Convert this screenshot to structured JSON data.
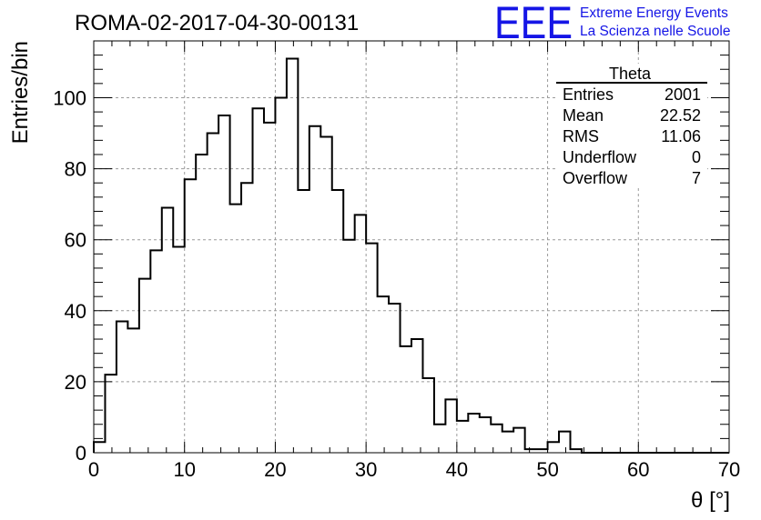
{
  "chart_data": {
    "type": "bar",
    "title": "ROMA-02-2017-04-30-00131",
    "xlabel": "θ [°]",
    "ylabel": "Entries/bin",
    "xlim": [
      0,
      70
    ],
    "ylim": [
      0,
      116
    ],
    "bin_width": 1.25,
    "bin_start": 0,
    "values": [
      3,
      22,
      37,
      35,
      49,
      57,
      69,
      58,
      77,
      84,
      90,
      95,
      70,
      76,
      97,
      93,
      100,
      111,
      74,
      92,
      89,
      74,
      60,
      67,
      59,
      44,
      42,
      30,
      32,
      21,
      8,
      15,
      9,
      11,
      10,
      8,
      6,
      7,
      1,
      1,
      3,
      6,
      1,
      0,
      0,
      0,
      0,
      0,
      0,
      0,
      0,
      0,
      0,
      0,
      0,
      0
    ],
    "x_ticks": [
      "0",
      "10",
      "20",
      "30",
      "40",
      "50",
      "60",
      "70"
    ],
    "y_ticks": [
      "0",
      "20",
      "40",
      "60",
      "80",
      "100"
    ],
    "grid": true
  },
  "stats_box": {
    "title": "Theta",
    "rows": [
      {
        "label": "Entries",
        "value": "2001"
      },
      {
        "label": "Mean",
        "value": "22.52"
      },
      {
        "label": "RMS",
        "value": "11.06"
      },
      {
        "label": "Underflow",
        "value": "0"
      },
      {
        "label": "Overflow",
        "value": "7"
      }
    ]
  },
  "logo": {
    "mark": "EEE",
    "line1": "Extreme Energy Events",
    "line2": "La Scienza nelle Scuole",
    "color": "#1515e6"
  }
}
